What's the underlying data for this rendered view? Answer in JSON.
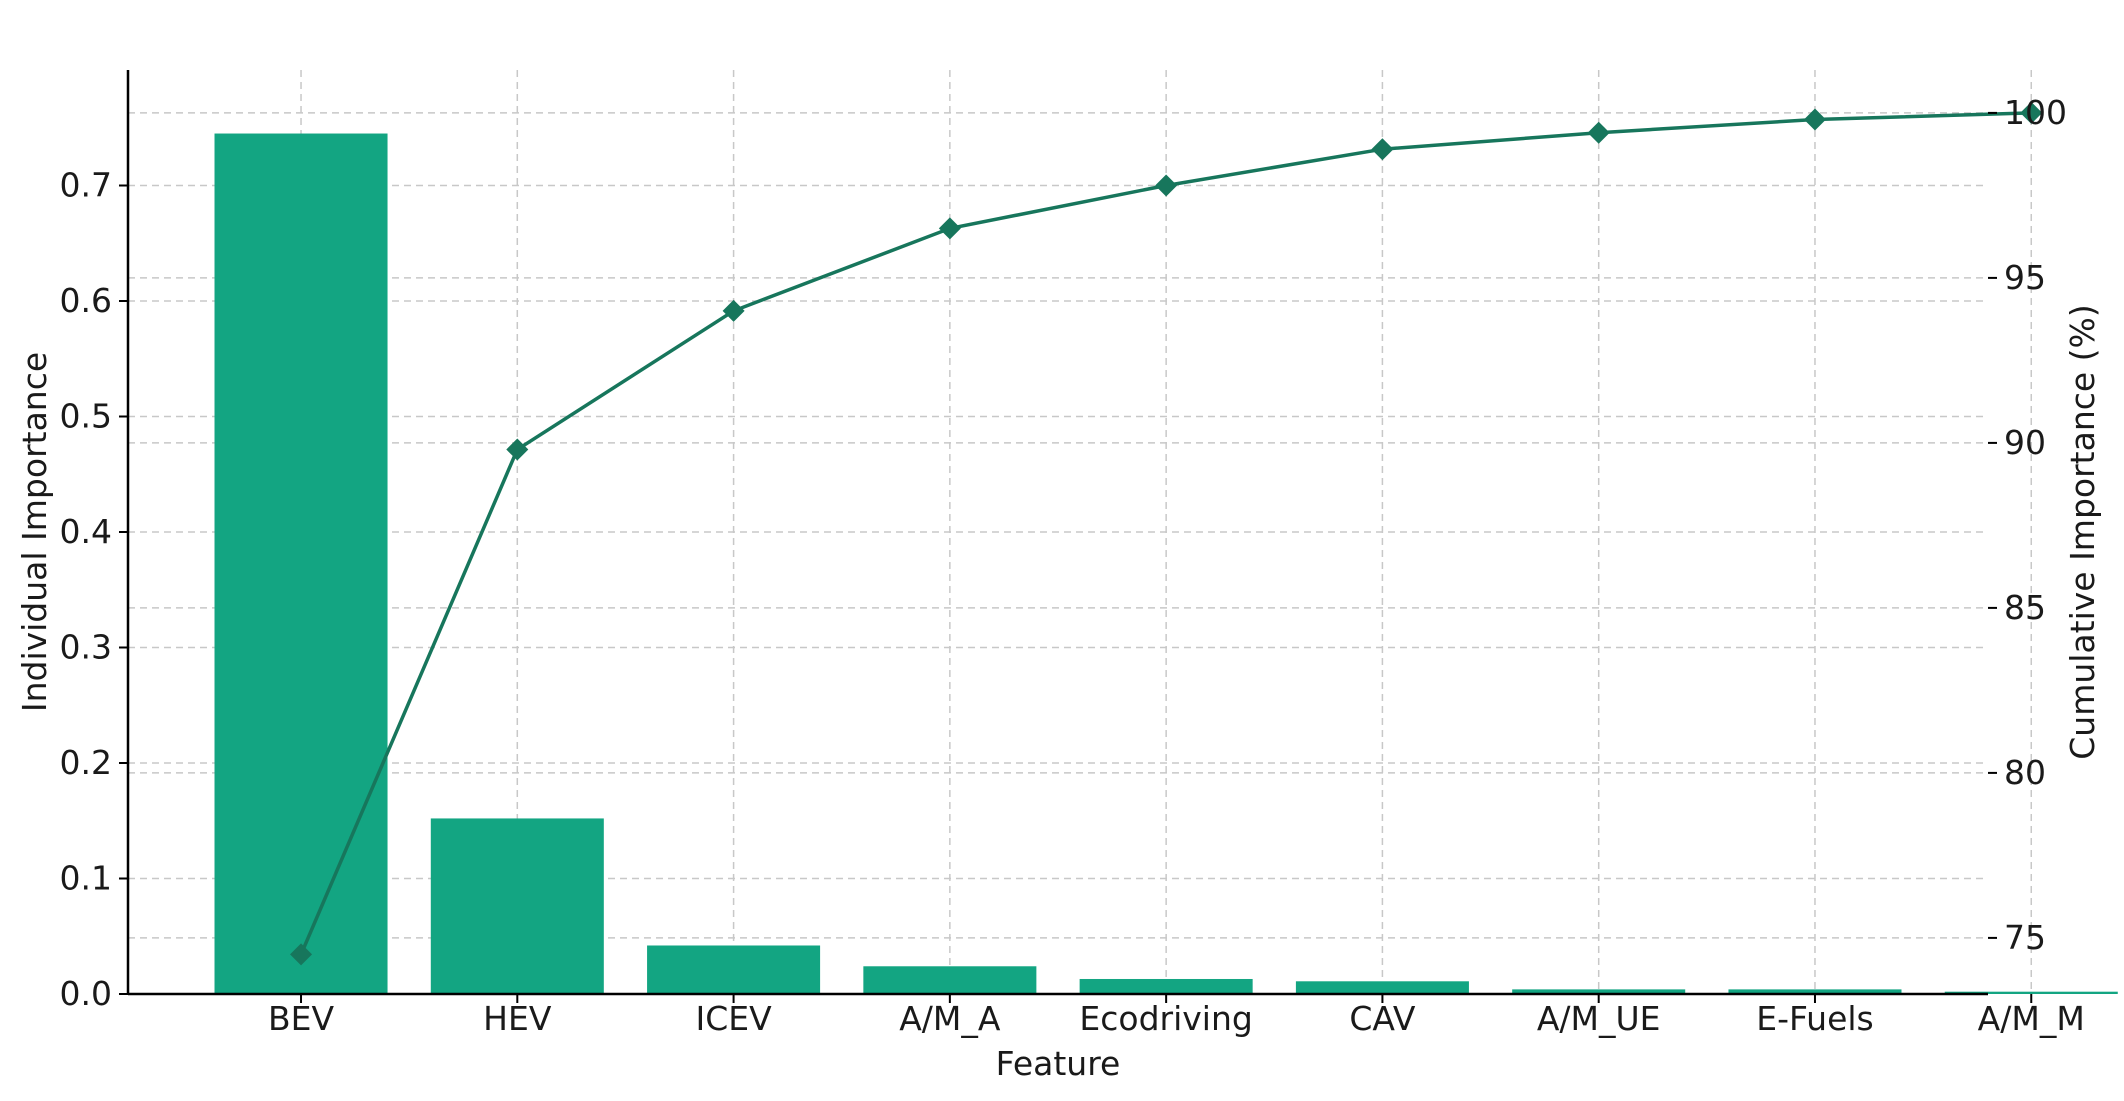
{
  "chart_data": {
    "type": "bar",
    "title": "",
    "xlabel": "Feature",
    "ylabel": "Individual Importance",
    "y2label": "Cumulative Importance (%)",
    "categories": [
      "BEV",
      "HEV",
      "ICEV",
      "A/M_A",
      "Ecodriving",
      "CAV",
      "A/M_UE",
      "E-Fuels",
      "A/M_M"
    ],
    "series": [
      {
        "type": "bar",
        "axis": "left",
        "values": [
          0.745,
          0.152,
          0.042,
          0.024,
          0.013,
          0.011,
          0.004,
          0.004,
          0.002
        ]
      },
      {
        "type": "line",
        "axis": "right",
        "marker": "diamond",
        "values": [
          74.5,
          89.8,
          94.0,
          96.5,
          97.8,
          98.9,
          99.4,
          99.8,
          100.0
        ]
      }
    ],
    "ylim": [
      0,
      0.8
    ],
    "y_ticks": [
      "0.0",
      "0.1",
      "0.2",
      "0.3",
      "0.4",
      "0.5",
      "0.6",
      "0.7"
    ],
    "y2lim": [
      73.3,
      101.3
    ],
    "y2_ticks": [
      "75",
      "80",
      "85",
      "90",
      "95",
      "100"
    ],
    "grid": true,
    "colors": {
      "bar": "#13a582",
      "line": "#17765c",
      "marker": "#17765c"
    }
  }
}
